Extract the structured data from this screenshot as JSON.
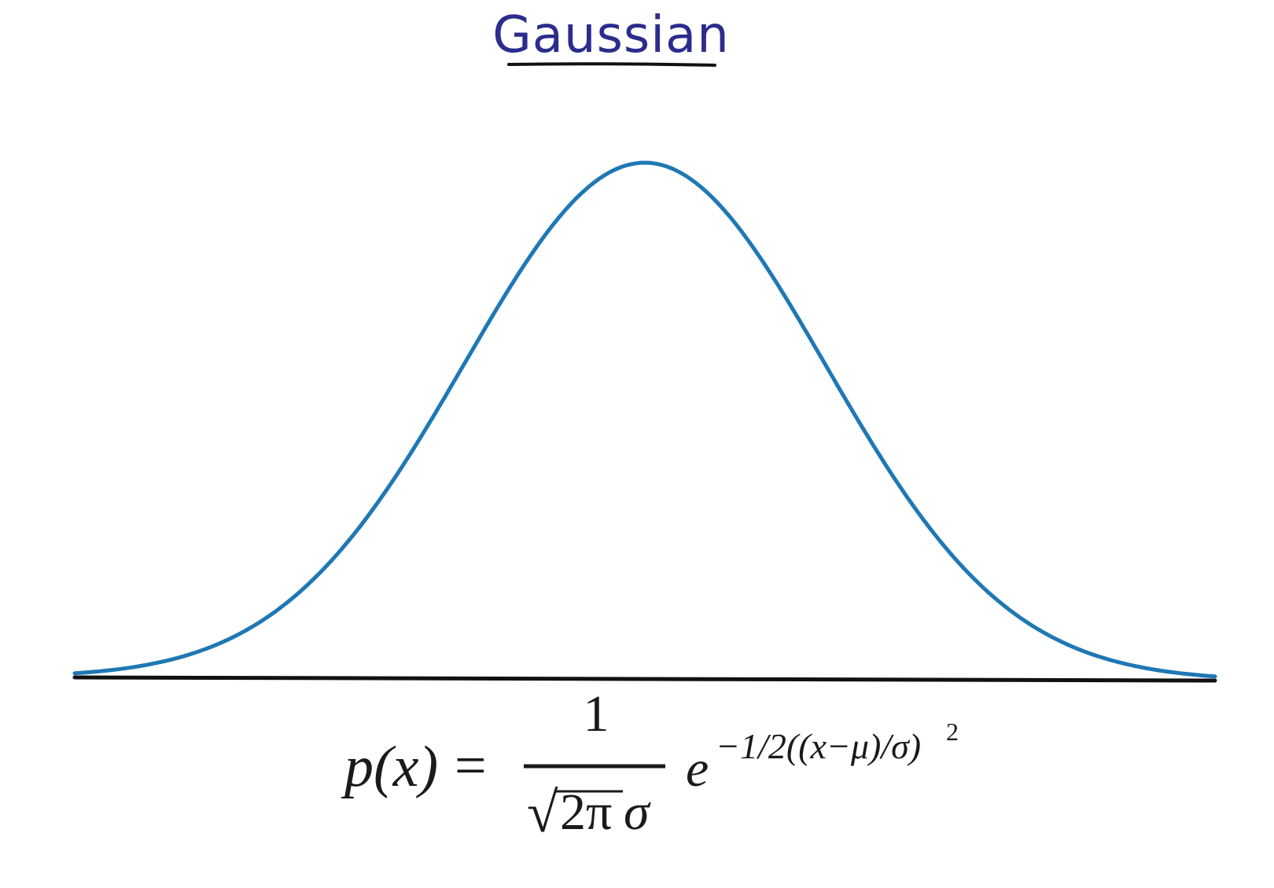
{
  "title": "Gaussian",
  "colors": {
    "title": "#2b2c8c",
    "curve": "#1f78b4",
    "axis": "#111111",
    "formula": "#1a1a1a"
  },
  "formula": {
    "lhs": "p(x)",
    "equals": "=",
    "numerator": "1",
    "sqrt_symbol": "√",
    "denominator_radicand": "2π",
    "denominator_tail": "σ",
    "base": "e",
    "exponent": "−1/2((x−μ)/σ)",
    "exponent_power": "2"
  }
}
